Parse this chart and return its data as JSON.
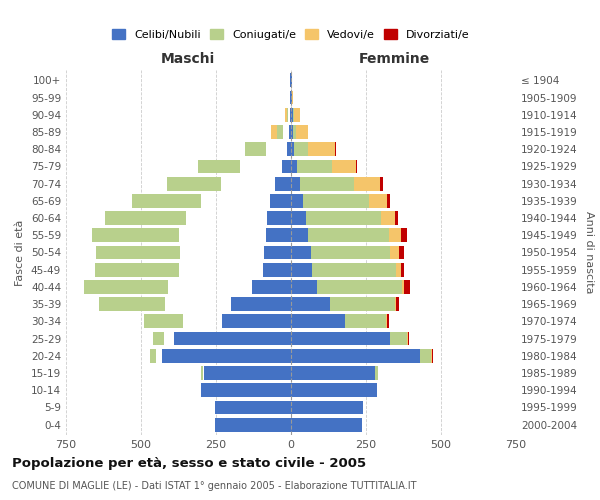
{
  "age_groups": [
    "0-4",
    "5-9",
    "10-14",
    "15-19",
    "20-24",
    "25-29",
    "30-34",
    "35-39",
    "40-44",
    "45-49",
    "50-54",
    "55-59",
    "60-64",
    "65-69",
    "70-74",
    "75-79",
    "80-84",
    "85-89",
    "90-94",
    "95-99",
    "100+"
  ],
  "birth_years": [
    "2000-2004",
    "1995-1999",
    "1990-1994",
    "1985-1989",
    "1980-1984",
    "1975-1979",
    "1970-1974",
    "1965-1969",
    "1960-1964",
    "1955-1959",
    "1950-1954",
    "1945-1949",
    "1940-1944",
    "1935-1939",
    "1930-1934",
    "1925-1929",
    "1920-1924",
    "1915-1919",
    "1910-1914",
    "1905-1909",
    "≤ 1904"
  ],
  "male": {
    "celibi": [
      255,
      255,
      300,
      290,
      430,
      390,
      230,
      200,
      130,
      95,
      90,
      85,
      80,
      70,
      55,
      30,
      15,
      8,
      5,
      2,
      2
    ],
    "coniugati": [
      0,
      0,
      2,
      5,
      20,
      35,
      130,
      220,
      280,
      280,
      280,
      290,
      270,
      230,
      180,
      140,
      70,
      20,
      5,
      0,
      0
    ],
    "vedovi": [
      0,
      0,
      0,
      0,
      5,
      5,
      0,
      0,
      2,
      2,
      3,
      5,
      5,
      15,
      25,
      30,
      30,
      20,
      5,
      0,
      0
    ],
    "divorziati": [
      0,
      0,
      0,
      0,
      2,
      2,
      5,
      10,
      15,
      12,
      10,
      15,
      10,
      5,
      5,
      5,
      0,
      0,
      0,
      0,
      0
    ]
  },
  "female": {
    "nubili": [
      235,
      240,
      285,
      280,
      430,
      330,
      180,
      130,
      85,
      70,
      65,
      55,
      50,
      40,
      30,
      20,
      10,
      5,
      5,
      3,
      2
    ],
    "coniugate": [
      0,
      0,
      3,
      10,
      35,
      55,
      135,
      215,
      285,
      280,
      265,
      270,
      250,
      220,
      180,
      115,
      45,
      10,
      5,
      0,
      0
    ],
    "vedove": [
      0,
      0,
      0,
      0,
      5,
      5,
      5,
      5,
      8,
      15,
      30,
      40,
      45,
      60,
      85,
      80,
      90,
      40,
      20,
      2,
      0
    ],
    "divorziate": [
      0,
      0,
      0,
      0,
      2,
      3,
      8,
      10,
      20,
      10,
      18,
      20,
      10,
      10,
      10,
      5,
      5,
      0,
      0,
      0,
      0
    ]
  },
  "colors": {
    "celibi": "#4472C4",
    "coniugati": "#B8D08C",
    "vedovi": "#F5C56A",
    "divorziati": "#C00000"
  },
  "xlim": 750,
  "title": "Popolazione per età, sesso e stato civile - 2005",
  "subtitle": "COMUNE DI MAGLIE (LE) - Dati ISTAT 1° gennaio 2005 - Elaborazione TUTTITALIA.IT",
  "ylabel_left": "Fasce di età",
  "ylabel_right": "Anni di nascita",
  "xlabel_left": "Maschi",
  "xlabel_right": "Femmine",
  "bg_color": "#ffffff",
  "grid_color": "#cccccc"
}
